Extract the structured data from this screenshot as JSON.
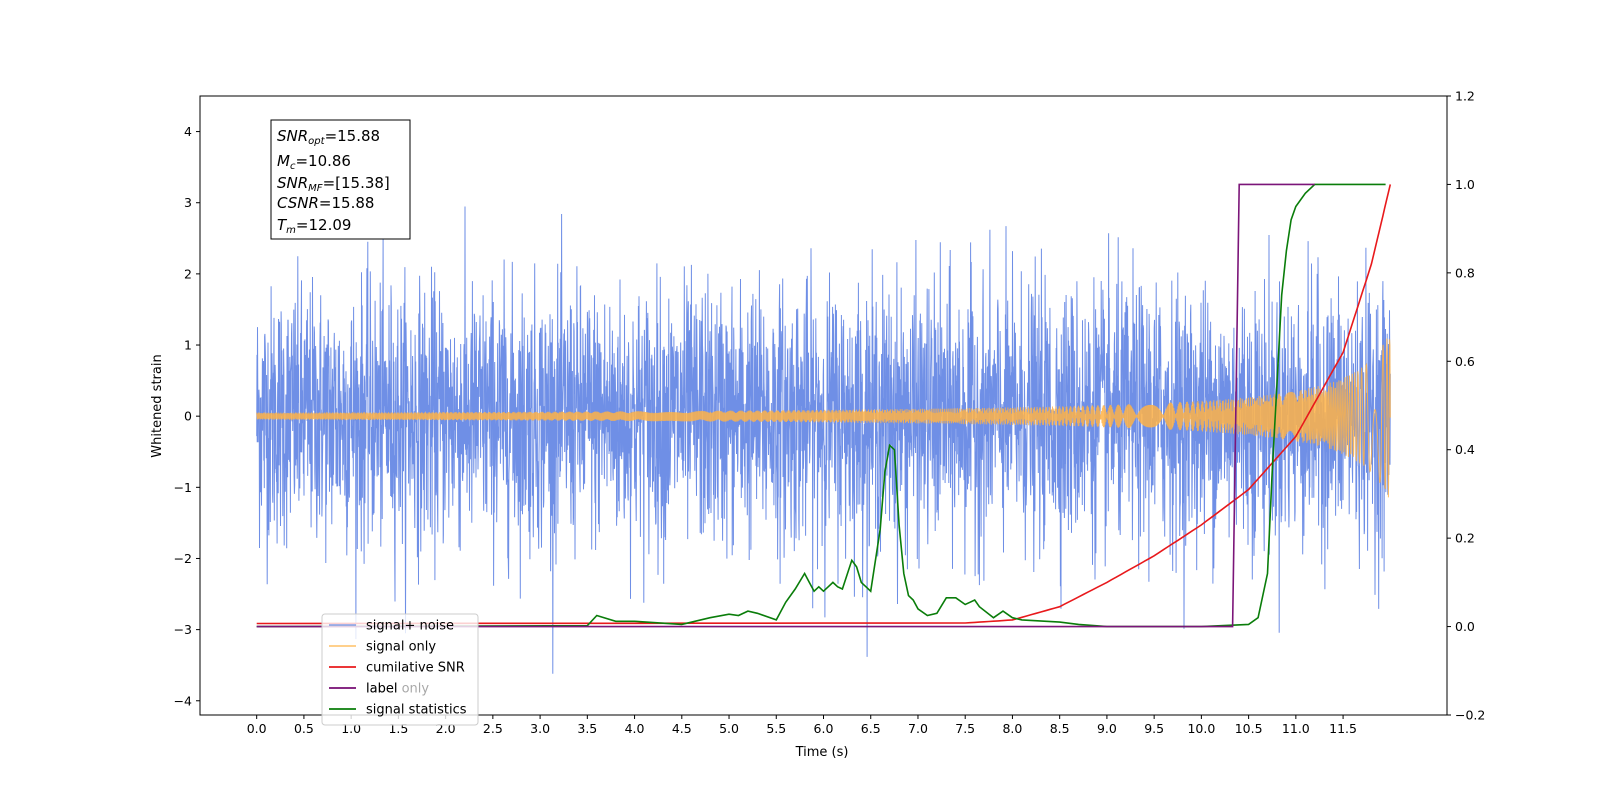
{
  "colors": {
    "signal_noise": "#6f8fe6",
    "signal_only": "#ffb347",
    "cumulative_snr": "#e8191c",
    "label": "#7b1579",
    "label_only": "#7b1579",
    "signal_statistics": "#0a7d0a"
  },
  "annotation": {
    "snr_opt": "SNR",
    "snr_opt_sub": "opt",
    "snr_opt_val": "=15.88",
    "mc": "M",
    "mc_sub": "c",
    "mc_val": "=10.86",
    "snr_mf": "SNR",
    "snr_mf_sub": "MF",
    "snr_mf_val": "=[15.38]",
    "csnr": "CSNR",
    "csnr_val": "=15.88",
    "tm": "T",
    "tm_sub": "m",
    "tm_val": "=12.09"
  },
  "chart_data": {
    "type": "line",
    "xlabel": "Time (s)",
    "ylabel": "Whitened strain",
    "xlim": [
      -0.6,
      12.6
    ],
    "ylim": [
      -4.2,
      4.5
    ],
    "y2lim": [
      -0.2,
      1.2
    ],
    "x_ticks": [
      "0.0",
      "0.5",
      "1.0",
      "1.5",
      "2.0",
      "2.5",
      "3.0",
      "3.5",
      "4.0",
      "4.5",
      "5.0",
      "5.5",
      "6.0",
      "6.5",
      "7.0",
      "7.5",
      "8.0",
      "8.5",
      "9.0",
      "9.5",
      "10.0",
      "10.5",
      "11.0",
      "11.5"
    ],
    "y_ticks": [
      "−4",
      "−3",
      "−2",
      "−1",
      "0",
      "1",
      "2",
      "3",
      "4"
    ],
    "y2_ticks": [
      "−0.2",
      "0.0",
      "0.2",
      "0.4",
      "0.6",
      "0.8",
      "1.0",
      "1.2"
    ],
    "legend_position": "lower-left",
    "series": [
      {
        "name": "signal+ noise",
        "axis": "left",
        "kind": "noise",
        "x_range": [
          0.0,
          12.0
        ],
        "std": 1.0
      },
      {
        "name": "signal only",
        "axis": "left",
        "kind": "chirp",
        "x_range": [
          0.0,
          12.0
        ],
        "amp_at_end": 1.2
      },
      {
        "name": "cumilative SNR",
        "axis": "right",
        "x": [
          0.0,
          7.5,
          8.0,
          8.5,
          9.0,
          9.5,
          10.0,
          10.5,
          11.0,
          11.5,
          11.8,
          12.0
        ],
        "y": [
          0.007,
          0.008,
          0.015,
          0.045,
          0.1,
          0.16,
          0.23,
          0.31,
          0.43,
          0.62,
          0.82,
          1.0
        ]
      },
      {
        "name": "label",
        "axis": "right",
        "x": [
          0.0,
          10.33,
          10.4,
          11.2
        ],
        "y": [
          0.0,
          0.0,
          1.0,
          1.0
        ]
      },
      {
        "name": "label only",
        "axis": "right",
        "x": [],
        "y": []
      },
      {
        "name": "signal statistics",
        "axis": "right",
        "x": [
          0.0,
          3.5,
          3.6,
          3.8,
          4.0,
          4.5,
          4.8,
          5.0,
          5.1,
          5.2,
          5.3,
          5.5,
          5.6,
          5.7,
          5.8,
          5.85,
          5.9,
          5.95,
          6.0,
          6.05,
          6.1,
          6.15,
          6.2,
          6.3,
          6.35,
          6.4,
          6.45,
          6.5,
          6.6,
          6.65,
          6.7,
          6.75,
          6.8,
          6.85,
          6.9,
          6.95,
          7.0,
          7.1,
          7.2,
          7.3,
          7.4,
          7.5,
          7.55,
          7.6,
          7.65,
          7.8,
          7.9,
          8.0,
          8.1,
          8.5,
          8.7,
          9.0,
          10.0,
          10.5,
          10.6,
          10.7,
          10.75,
          10.8,
          10.85,
          10.9,
          10.95,
          11.0,
          11.1,
          11.2,
          11.3,
          11.5,
          11.95
        ],
        "y": [
          0.0,
          0.002,
          0.025,
          0.012,
          0.012,
          0.005,
          0.02,
          0.028,
          0.025,
          0.035,
          0.03,
          0.015,
          0.055,
          0.085,
          0.12,
          0.1,
          0.08,
          0.09,
          0.08,
          0.09,
          0.1,
          0.09,
          0.085,
          0.15,
          0.135,
          0.1,
          0.09,
          0.08,
          0.22,
          0.35,
          0.41,
          0.4,
          0.23,
          0.12,
          0.07,
          0.06,
          0.04,
          0.025,
          0.03,
          0.065,
          0.065,
          0.05,
          0.055,
          0.06,
          0.045,
          0.02,
          0.035,
          0.02,
          0.015,
          0.01,
          0.005,
          0.0,
          0.0,
          0.005,
          0.02,
          0.12,
          0.35,
          0.55,
          0.75,
          0.85,
          0.92,
          0.95,
          0.98,
          1.0,
          1.0,
          1.0,
          1.0
        ]
      }
    ]
  }
}
